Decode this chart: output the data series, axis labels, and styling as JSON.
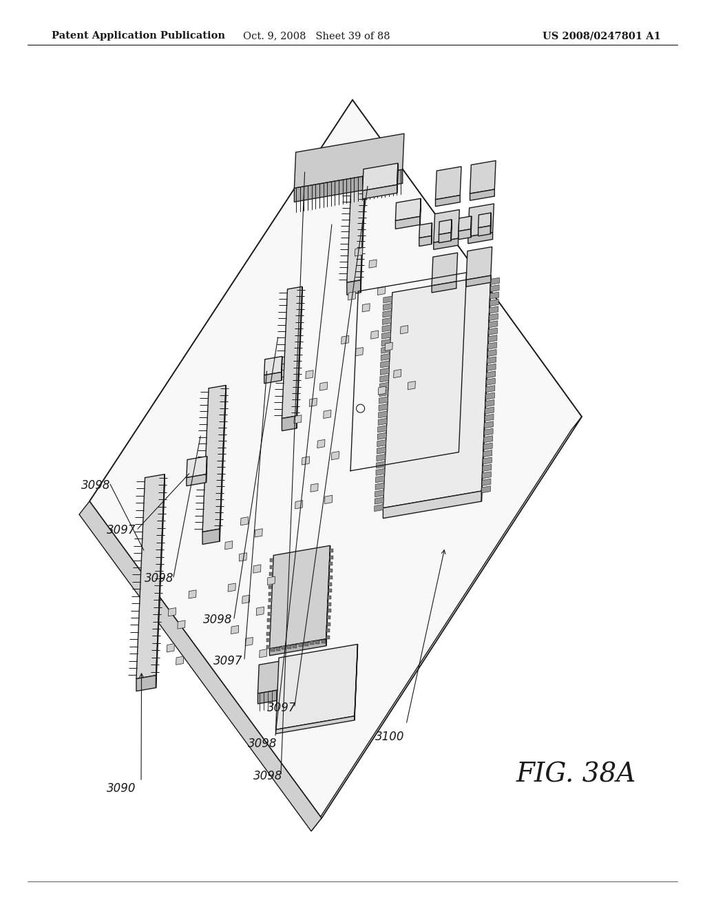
{
  "background_color": "#ffffff",
  "header_left": "Patent Application Publication",
  "header_center": "Oct. 9, 2008   Sheet 39 of 88",
  "header_right": "US 2008/0247801 A1",
  "figure_label": "FIG. 38A",
  "line_color": "#1a1a1a",
  "label_color": "#1a1a1a",
  "header_fontsize": 10.5,
  "label_fontsize": 12,
  "fig_label_fontsize": 28,
  "board_face": "#f8f8f8",
  "board_side": "#e8e8e8",
  "connector_face": "#e0e0e0",
  "component_face": "#d8d8d8",
  "pin_color": "#555555"
}
